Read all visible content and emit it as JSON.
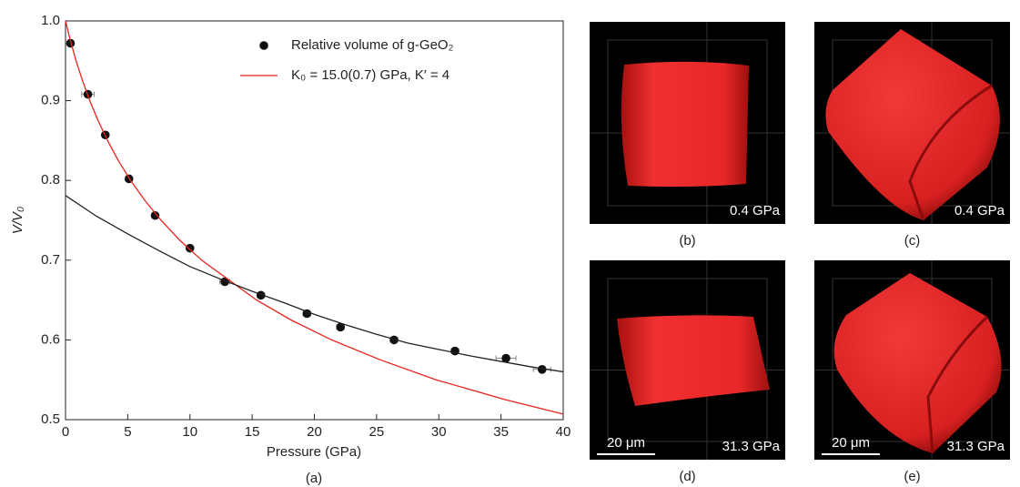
{
  "chart_data": {
    "type": "scatter",
    "xlabel": "Pressure (GPa)",
    "ylabel": "V/V₀",
    "caption": "(a)",
    "xlim": [
      0,
      40
    ],
    "xticks": [
      0,
      5,
      10,
      15,
      20,
      25,
      30,
      35,
      40
    ],
    "ylim": [
      0.5,
      1
    ],
    "yticks": [
      0.5,
      0.6,
      0.7,
      0.8,
      0.9,
      {
        "value": 1,
        "label": "1.0"
      }
    ],
    "legend": "top-right",
    "series": [
      {
        "name": "Relative volume of g-GeO₂",
        "color": "#111111",
        "style": "markers",
        "x": [
          0.4,
          1.8,
          3.2,
          5.1,
          7.2,
          10.0,
          12.8,
          15.7,
          19.4,
          22.1,
          26.4,
          31.3,
          35.4,
          38.3
        ],
        "values": [
          0.972,
          0.908,
          0.857,
          0.802,
          0.756,
          0.715,
          0.673,
          0.656,
          0.633,
          0.616,
          0.6,
          0.586,
          0.577,
          0.563
        ],
        "xerr": [
          0.2,
          0.5,
          0.2,
          0.2,
          0.2,
          0.2,
          0.4,
          0.3,
          0.3,
          0.3,
          0.3,
          0.3,
          0.8,
          0.7
        ]
      },
      {
        "name": "K₀ = 15.0(0.7) GPa, K′ = 4",
        "color": "#e8231c",
        "style": "line",
        "x": [
          0,
          0.4,
          0.85,
          1.37,
          1.95,
          2.62,
          3.38,
          4.24,
          5.23,
          6.37,
          7.68,
          9.18,
          10.94,
          15.35,
          18.12,
          21.39,
          25.3,
          29.78,
          35.36,
          40
        ],
        "values": [
          1,
          0.975,
          0.95,
          0.925,
          0.9,
          0.875,
          0.85,
          0.825,
          0.8,
          0.775,
          0.75,
          0.725,
          0.7,
          0.65,
          0.625,
          0.6,
          0.575,
          0.55,
          0.525,
          0.507
        ]
      },
      {
        "color": "#222222",
        "style": "line",
        "x": [
          0,
          2.5,
          5,
          7.5,
          10,
          12.5,
          15,
          17.5,
          20,
          22.5,
          25,
          27.5,
          30,
          32.5,
          35,
          37.5,
          40
        ],
        "values": [
          0.781,
          0.755,
          0.733,
          0.712,
          0.692,
          0.676,
          0.661,
          0.647,
          0.632,
          0.619,
          0.607,
          0.596,
          0.588,
          0.58,
          0.573,
          0.566,
          0.56
        ]
      }
    ]
  },
  "panels": [
    {
      "label": "(b)",
      "pressure": "0.4 GPa"
    },
    {
      "label": "(c)",
      "pressure": "0.4 GPa"
    },
    {
      "label": "(d)",
      "pressure": "31.3 GPa",
      "scale": "20 μm"
    },
    {
      "label": "(e)",
      "pressure": "31.3 GPa",
      "scale": "20 μm"
    }
  ]
}
